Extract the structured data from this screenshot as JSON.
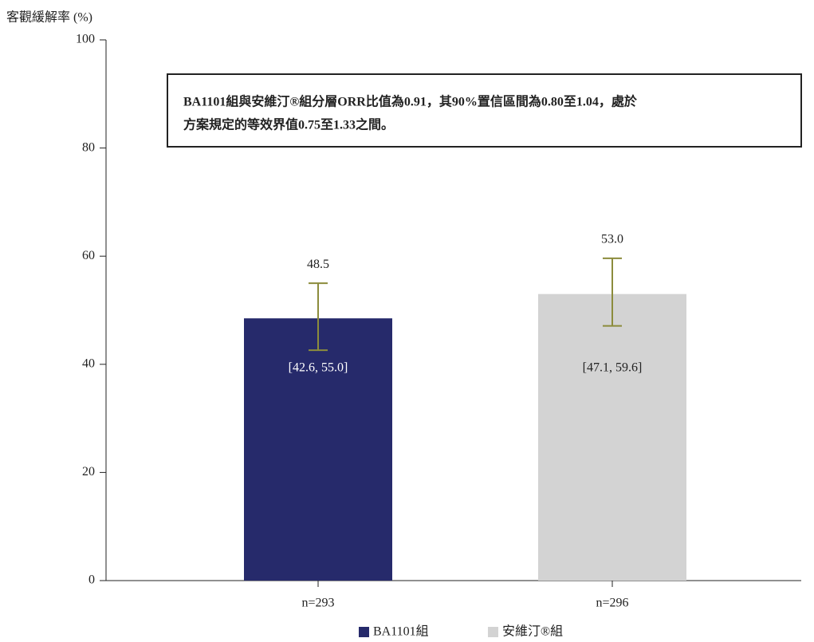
{
  "chart_data": {
    "type": "bar",
    "y_label": "客觀緩解率 (%)",
    "annotation": [
      "BA1101組與安維汀®組分層ORR比值為0.91，其90%置信區間為0.80至1.04，處於",
      "方案規定的等效界值0.75至1.33之間。"
    ],
    "categories": [
      "n=293",
      "n=296"
    ],
    "series": [
      {
        "name": "BA1101組",
        "color": "#262a6b",
        "values": [
          48.5,
          null
        ]
      },
      {
        "name": "安維汀®組",
        "color": "#d3d3d3",
        "values": [
          null,
          53.0
        ],
        "value_labels": [
          null,
          "53.0"
        ]
      }
    ],
    "ci_low": [
      42.6,
      47.1
    ],
    "ci_high": [
      55.0,
      59.6
    ],
    "ci_labels": [
      "[42.6, 55.0]",
      "[47.1, 59.6]"
    ],
    "error_color": "#8c8c3c",
    "ylim": [
      0,
      100
    ],
    "yticks": [
      0,
      20,
      40,
      60,
      80,
      100
    ],
    "legend": "bottom"
  }
}
